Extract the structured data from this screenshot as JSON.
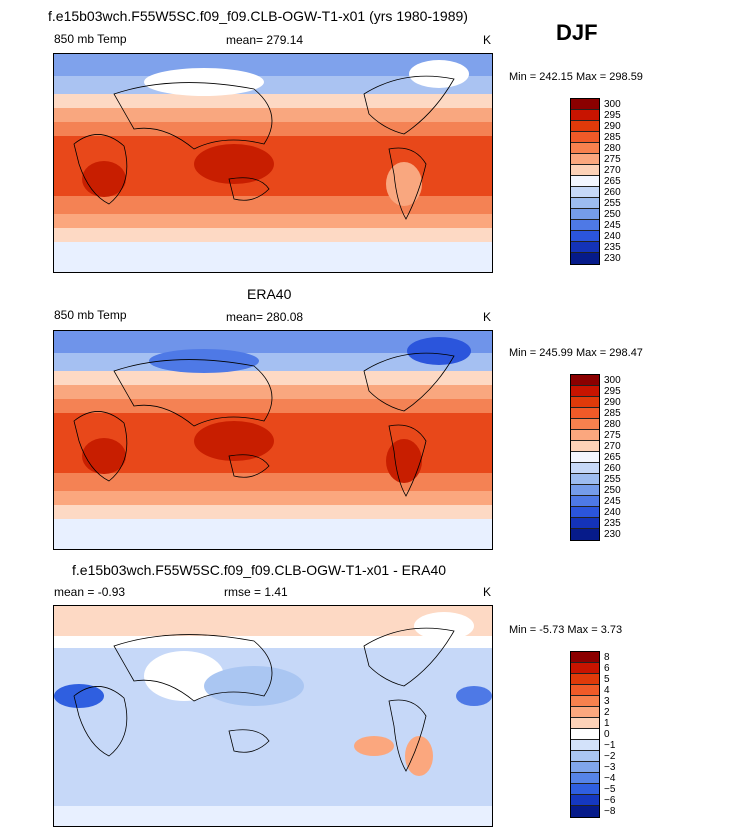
{
  "season": "DJF",
  "panels": [
    {
      "title": "f.e15b03wch.F55W5SC.f09_f09.CLB-OGW-T1-x01 (yrs 1980-1989)",
      "left_label": "850 mb Temp",
      "center_label": "mean= 279.14",
      "unit": "K",
      "minmax": "Min = 242.15 Max = 298.59",
      "levels": [
        "300",
        "295",
        "290",
        "285",
        "280",
        "275",
        "270",
        "265",
        "260",
        "255",
        "250",
        "245",
        "240",
        "235",
        "230"
      ],
      "colors": [
        "#8b0000",
        "#c81400",
        "#e03a0a",
        "#f05a28",
        "#f7814e",
        "#fba77e",
        "#fdd2b8",
        "#f3f6ff",
        "#c6d8f8",
        "#9dbcf0",
        "#759cea",
        "#4e79e6",
        "#2b55dc",
        "#1433b8",
        "#061b8a"
      ]
    },
    {
      "title": "ERA40",
      "left_label": "850 mb Temp",
      "center_label": "mean= 280.08",
      "unit": "K",
      "minmax": "Min = 245.99 Max = 298.47",
      "levels": [
        "300",
        "295",
        "290",
        "285",
        "280",
        "275",
        "270",
        "265",
        "260",
        "255",
        "250",
        "245",
        "240",
        "235",
        "230"
      ],
      "colors": [
        "#8b0000",
        "#c81400",
        "#e03a0a",
        "#f05a28",
        "#f7814e",
        "#fba77e",
        "#fdd2b8",
        "#f3f6ff",
        "#c6d8f8",
        "#9dbcf0",
        "#759cea",
        "#4e79e6",
        "#2b55dc",
        "#1433b8",
        "#061b8a"
      ]
    },
    {
      "title": "f.e15b03wch.F55W5SC.f09_f09.CLB-OGW-T1-x01 - ERA40",
      "left_label": "mean =   -0.93",
      "center_label": "rmse =    1.41",
      "unit": "K",
      "minmax": "Min =  -5.73 Max =   3.73",
      "levels": [
        "8",
        "6",
        "5",
        "4",
        "3",
        "2",
        "1",
        "0",
        "−1",
        "−2",
        "−3",
        "−4",
        "−5",
        "−6",
        "−8"
      ],
      "colors": [
        "#8b0000",
        "#c81400",
        "#e03a0a",
        "#f05a28",
        "#f7814e",
        "#fba77e",
        "#fdd2b8",
        "#ffffff",
        "#d3e2fa",
        "#aac6f2",
        "#80a6ec",
        "#5684e8",
        "#2f5fe0",
        "#1538c0",
        "#061b8a"
      ]
    }
  ]
}
